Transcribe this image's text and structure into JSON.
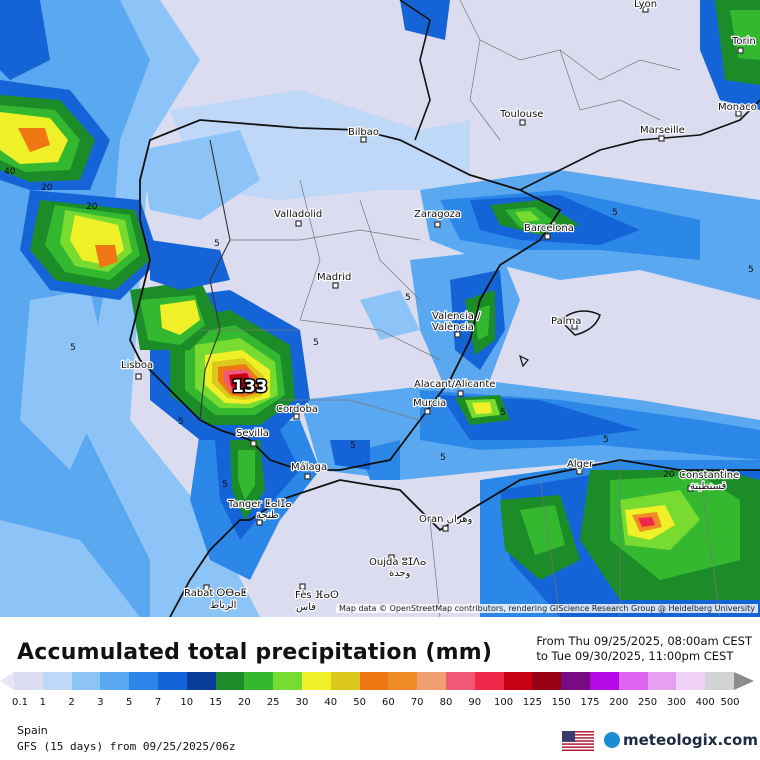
{
  "map": {
    "attribution": "Map data © OpenStreetMap contributors, rendering GIScience Research Group @ Heidelberg University",
    "max_value": "133",
    "contour_labels": [
      "40",
      "20",
      "20",
      "5",
      "5",
      "5",
      "5",
      "5",
      "5",
      "5",
      "5",
      "5",
      "5",
      "5",
      "5",
      "20"
    ],
    "cities": [
      {
        "name": "Lyon"
      },
      {
        "name": "Torin"
      },
      {
        "name": "Monaco"
      },
      {
        "name": "Bilbao"
      },
      {
        "name": "Toulouse"
      },
      {
        "name": "Marseille"
      },
      {
        "name": "Valladolid"
      },
      {
        "name": "Zaragoza"
      },
      {
        "name": "Barcelona"
      },
      {
        "name": "Madrid"
      },
      {
        "name": "Valencia /"
      },
      {
        "name": "València"
      },
      {
        "name": "Palma"
      },
      {
        "name": "Lisboa"
      },
      {
        "name": "Cordoba"
      },
      {
        "name": "Alacant/Alicante"
      },
      {
        "name": "Murcia"
      },
      {
        "name": "Sevilla"
      },
      {
        "name": "Málaga"
      },
      {
        "name": "Alger"
      },
      {
        "name": "Constantine"
      },
      {
        "name": "قسنطينة"
      },
      {
        "name": "Tanger ⵟⴰⵏⵊⴰ"
      },
      {
        "name": "طنجة"
      },
      {
        "name": "Oran وهران"
      },
      {
        "name": "Oujda ⵓⵊⴷⴰ"
      },
      {
        "name": "وجدة"
      },
      {
        "name": "Rabat ⵔⴱⴰⵟ"
      },
      {
        "name": "الرباط"
      },
      {
        "name": "Fès ⴼⴰⵙ"
      },
      {
        "name": "فاس"
      }
    ]
  },
  "title": "Accumulated total precipitation (mm)",
  "period": {
    "from": "From Thu 09/25/2025, 08:00am CEST",
    "to": "to Tue 09/30/2025, 11:00pm CEST"
  },
  "legend": {
    "ticks": [
      "0.1",
      "1",
      "2",
      "3",
      "5",
      "7",
      "10",
      "15",
      "20",
      "25",
      "30",
      "40",
      "50",
      "60",
      "70",
      "80",
      "90",
      "100",
      "125",
      "150",
      "175",
      "200",
      "250",
      "300",
      "400",
      "500"
    ],
    "colors": [
      "#dcdcf0",
      "#c0d8f8",
      "#8cc4f8",
      "#5aa8f0",
      "#2c88e8",
      "#1464d8",
      "#0a3c9c",
      "#1c8c28",
      "#34b830",
      "#78dc30",
      "#f0f028",
      "#dcc81c",
      "#f07814",
      "#f08c28",
      "#f0a070",
      "#f05a78",
      "#f0284c",
      "#c80014",
      "#960014",
      "#780a82",
      "#b40ae6",
      "#dc64f0",
      "#e6a0f0",
      "#f0d2f8",
      "#d2d2d2"
    ],
    "left_color": "#e6e6f5",
    "right_color": "#8c8c8c"
  },
  "region": "Spain",
  "model": "GFS (15 days) from 09/25/2025/06z",
  "brand": "meteologix.com",
  "flag_icon": "us-flag-icon"
}
